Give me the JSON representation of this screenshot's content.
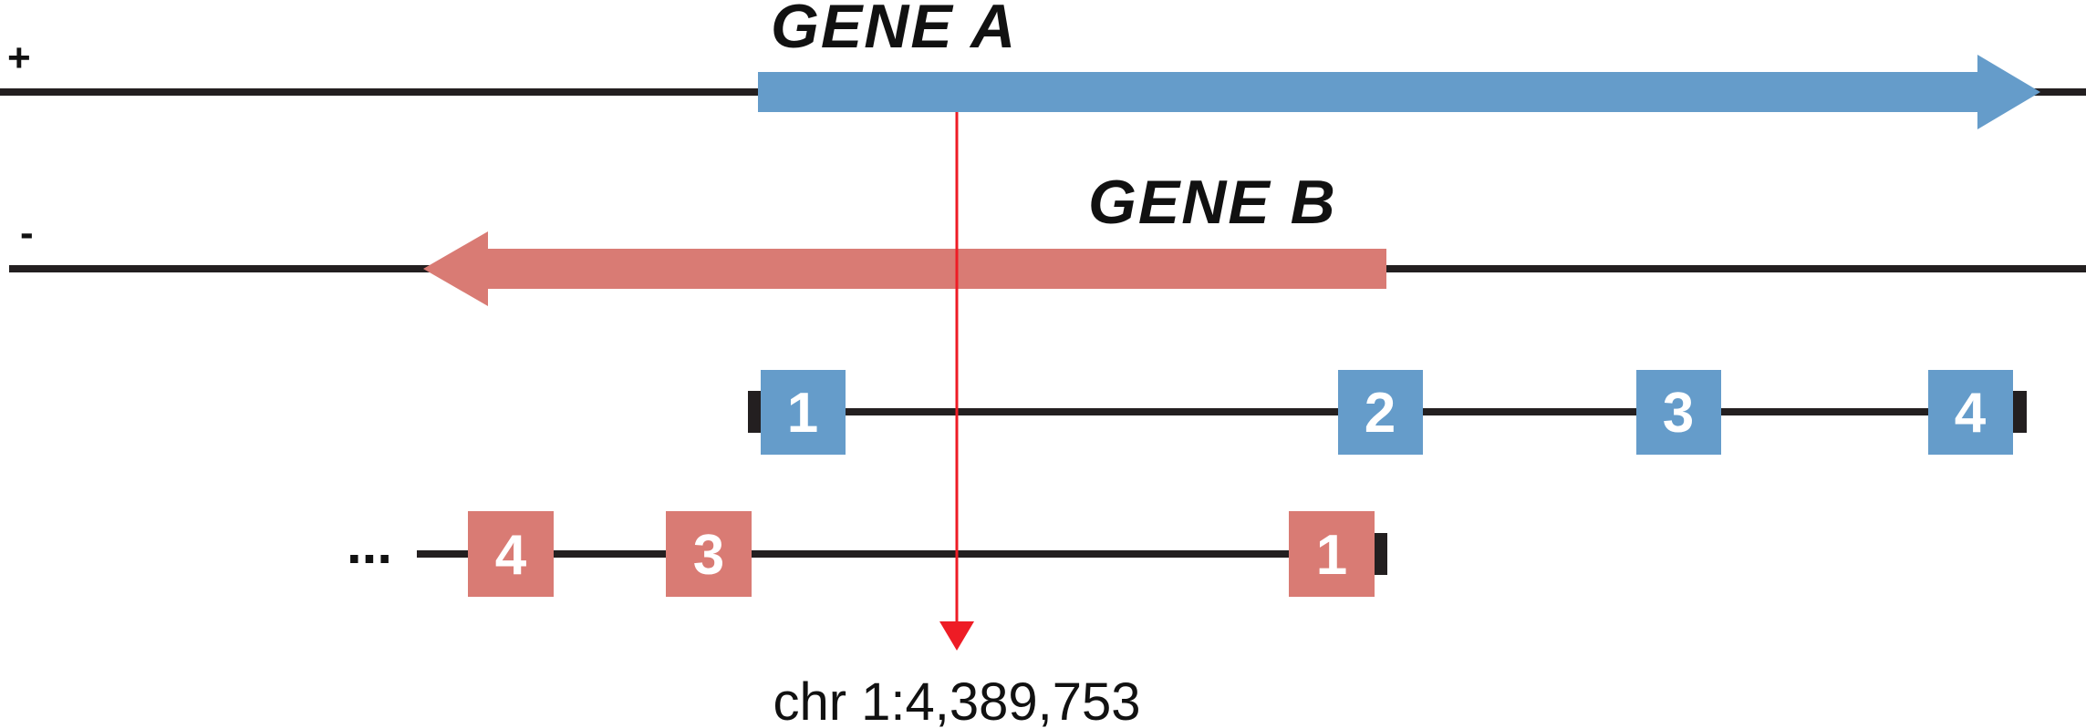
{
  "strands": {
    "plus": "+",
    "minus": "-"
  },
  "genes": {
    "a": {
      "name": "GENE A",
      "color": "#659CCA",
      "exons": [
        "1",
        "2",
        "3",
        "4"
      ]
    },
    "b": {
      "name": "GENE B",
      "color": "#D97B74",
      "exons": [
        "4",
        "3",
        "1"
      ],
      "continuation": "..."
    }
  },
  "marker": {
    "label": "chr 1:4,389,753",
    "color": "#EE1C25"
  },
  "line_color": "#231F20"
}
